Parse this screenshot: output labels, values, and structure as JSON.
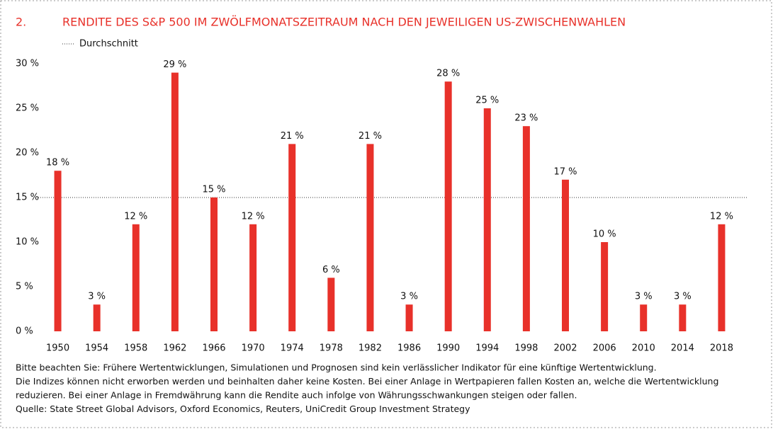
{
  "chart_data": {
    "type": "bar",
    "number": "2.",
    "title": "RENDITE DES S&P 500 IM ZWÖLFMONATSZEITRAUM NACH DEN JEWEILIGEN US-ZWISCHENWAHLEN",
    "categories": [
      "1950",
      "1954",
      "1958",
      "1962",
      "1966",
      "1970",
      "1974",
      "1978",
      "1982",
      "1986",
      "1990",
      "1994",
      "1998",
      "2002",
      "2006",
      "2010",
      "2014",
      "2018"
    ],
    "values": [
      18,
      3,
      12,
      29,
      15,
      12,
      21,
      6,
      21,
      3,
      28,
      25,
      23,
      17,
      10,
      3,
      3,
      12
    ],
    "value_labels": [
      "18 %",
      "3 %",
      "12 %",
      "29 %",
      "15 %",
      "12 %",
      "21 %",
      "6 %",
      "21 %",
      "3 %",
      "28 %",
      "25 %",
      "23 %",
      "17 %",
      "10 %",
      "3 %",
      "3 %",
      "12 %"
    ],
    "color": "#e8312a",
    "ylim": [
      0,
      30
    ],
    "yticks": [
      {
        "value": 0,
        "label": "0 %"
      },
      {
        "value": 5,
        "label": "5 %"
      },
      {
        "value": 10,
        "label": "10 %"
      },
      {
        "value": 15,
        "label": "15 %"
      },
      {
        "value": 20,
        "label": "20 %"
      },
      {
        "value": 25,
        "label": "25 %"
      },
      {
        "value": 30,
        "label": "30 %"
      }
    ],
    "grid": false,
    "average": {
      "name": "Durchschnitt",
      "value": 15
    },
    "notes": [
      "Bitte beachten Sie: Frühere Wertentwicklungen, Simulationen und Prognosen sind kein verlässlicher Indikator für eine künftige Wertentwicklung.",
      "Die Indizes können nicht erworben werden und beinhalten daher keine Kosten. Bei einer Anlage in Wertpapieren fallen Kosten an, welche die Wertentwicklung",
      "reduzieren. Bei einer Anlage in Fremdwährung kann die Rendite auch infolge von Währungsschwankungen steigen oder fallen.",
      "Quelle: State Street Global Advisors, Oxford Economics, Reuters, UniCredit Group Investment Strategy"
    ]
  }
}
